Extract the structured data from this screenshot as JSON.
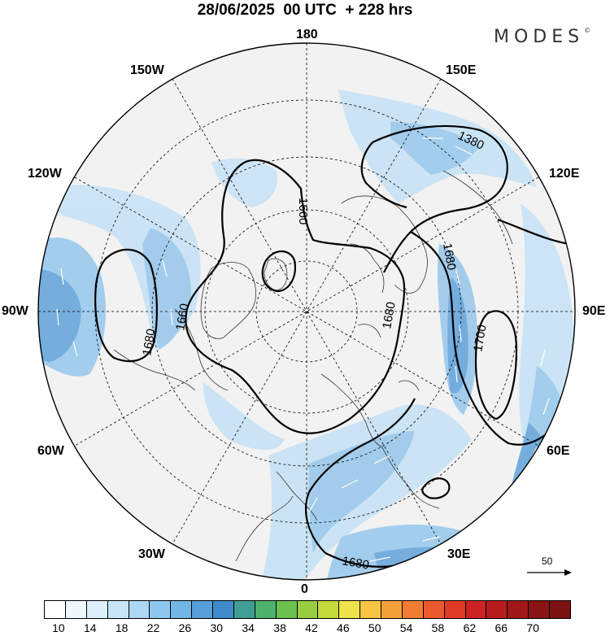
{
  "title": "28/06/2025  00 UTC  + 228 hrs",
  "brand": "MODES",
  "brand_mark": "©",
  "longitude_labels": {
    "top": "180",
    "bottom": "0",
    "left": "90W",
    "right": "90E",
    "upper_left_1": "150W",
    "upper_left_2": "120W",
    "upper_right_1": "150E",
    "upper_right_2": "120E",
    "lower_left_1": "60W",
    "lower_left_2": "30W",
    "lower_right_1": "60E",
    "lower_right_2": "30E"
  },
  "contour_labels": [
    "1380",
    "1660",
    "1680",
    "1660",
    "1680",
    "1680",
    "1700",
    "1680"
  ],
  "vector_reference": "50",
  "colorbar": {
    "tick_labels": [
      "10",
      "14",
      "18",
      "22",
      "26",
      "30",
      "34",
      "38",
      "42",
      "46",
      "50",
      "54",
      "58",
      "62",
      "66",
      "70"
    ],
    "colors": [
      "#ffffff",
      "#eef7fd",
      "#dcf0fb",
      "#c6e6f8",
      "#acd8f3",
      "#8fc8ee",
      "#72b6e6",
      "#569fd8",
      "#3f8bcb",
      "#3f9f94",
      "#4fb26c",
      "#6cc04e",
      "#97cd3e",
      "#c4d93c",
      "#efe24a",
      "#f7c444",
      "#f5a13a",
      "#f17d33",
      "#eb5a2c",
      "#de3a27",
      "#cc2424",
      "#b71d1f",
      "#a11818",
      "#8a1313",
      "#7c1111"
    ]
  },
  "colors": {
    "land_fill": "#f2f2f2",
    "wind_light": "#c9e3f5",
    "wind_mid": "#9fcbec",
    "wind_strong": "#6ea9dc"
  }
}
